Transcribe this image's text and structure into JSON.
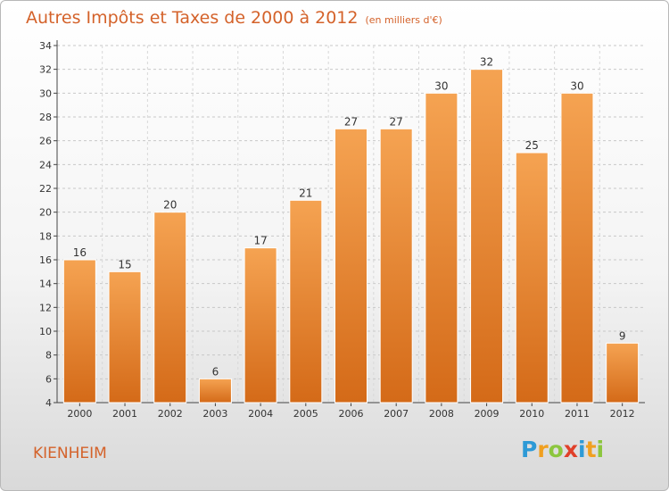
{
  "title": "Autres Impôts et Taxes de 2000 à 2012",
  "unit": "(en milliers d'€)",
  "commune": "KIENHEIM",
  "logo": {
    "letters": [
      {
        "char": "P",
        "color": "#2e9ad6"
      },
      {
        "char": "r",
        "color": "#f0a020"
      },
      {
        "char": "o",
        "color": "#8cc63e"
      },
      {
        "char": "x",
        "color": "#e0402a"
      },
      {
        "char": "i",
        "color": "#2e9ad6"
      },
      {
        "char": "t",
        "color": "#f0a020"
      },
      {
        "char": "i",
        "color": "#8cc63e"
      }
    ]
  },
  "colors": {
    "bar_top": "#f5a352",
    "bar_bottom": "#d46a18",
    "accent": "#d4622a"
  },
  "chart_data": {
    "type": "bar",
    "categories": [
      "2000",
      "2001",
      "2002",
      "2003",
      "2004",
      "2005",
      "2006",
      "2007",
      "2008",
      "2009",
      "2010",
      "2011",
      "2012"
    ],
    "values": [
      16,
      15,
      20,
      6,
      17,
      21,
      27,
      27,
      30,
      32,
      25,
      30,
      9
    ],
    "ylim": [
      4,
      34
    ],
    "yticks": [
      4,
      6,
      8,
      10,
      12,
      14,
      16,
      18,
      20,
      22,
      24,
      26,
      28,
      30,
      32,
      34
    ],
    "grid": true
  }
}
